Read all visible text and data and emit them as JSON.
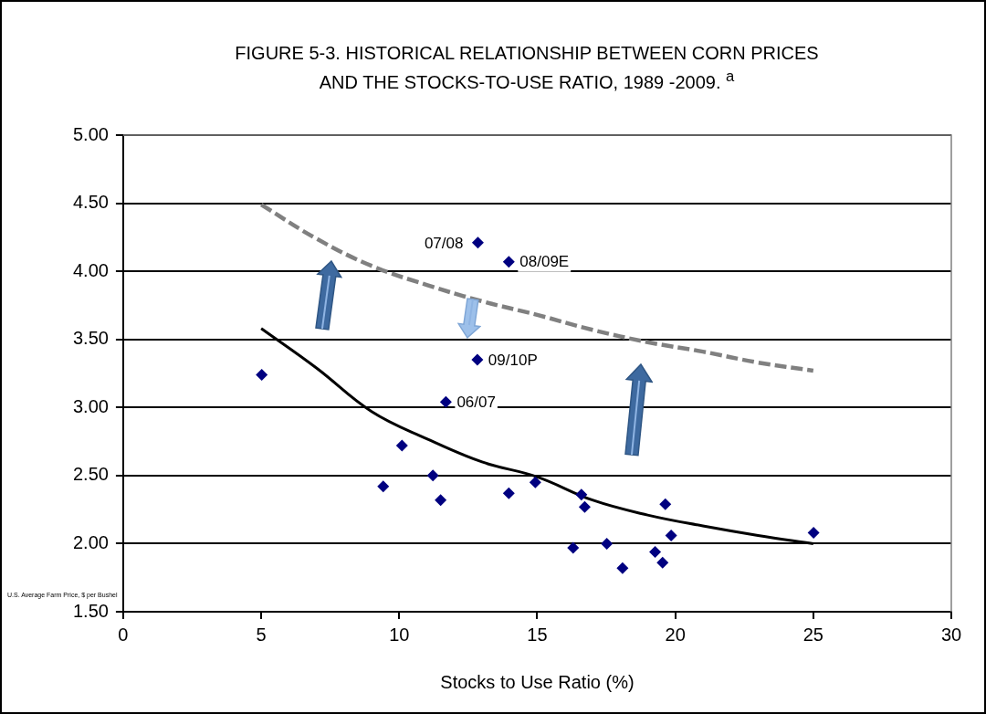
{
  "chart_data": {
    "type": "scatter",
    "title": "FIGURE 5-3. HISTORICAL RELATIONSHIP BETWEEN CORN PRICES AND THE STOCKS-TO-USE RATIO, 1989 -2009. $^{a}$",
    "xlabel": "Stocks to Use Ratio (%)",
    "ylabel": "U.S. Average Farm Price, $ per Bushel",
    "xlim": [
      0,
      30
    ],
    "xticks": [
      0,
      5,
      10,
      15,
      20,
      25,
      30
    ],
    "ylim": [
      1.5,
      5
    ],
    "yticks": [
      {
        "value": 1.5,
        "label": "1.50"
      },
      {
        "value": 2,
        "label": "2.00"
      },
      {
        "value": 2.5,
        "label": "2.50"
      },
      {
        "value": 3,
        "label": "3.00"
      },
      {
        "value": 3.5,
        "label": "3.50"
      },
      {
        "value": 4,
        "label": "4.00"
      },
      {
        "value": 4.5,
        "label": "4.50"
      },
      {
        "value": 5,
        "label": "5.00"
      }
    ],
    "grid": "y",
    "legend": false,
    "series": [
      {
        "type": "scatter",
        "color": "#000080",
        "marker": "diamond",
        "x": [
          5.02,
          9.42,
          10.1,
          11.22,
          11.5,
          12.85,
          13.97,
          12.83,
          11.69,
          13.97,
          14.93,
          16.6,
          16.72,
          19.64,
          16.3,
          17.52,
          18.09,
          19.27,
          19.54,
          19.85,
          25.01
        ],
        "values": [
          3.24,
          2.42,
          2.72,
          2.5,
          2.32,
          4.21,
          4.07,
          3.35,
          3.04,
          2.37,
          2.45,
          2.36,
          2.27,
          2.29,
          1.97,
          2.0,
          1.82,
          1.94,
          1.86,
          2.06,
          2.08
        ]
      },
      {
        "type": "line",
        "color": "#000000",
        "line_style": "solid",
        "marker": "none",
        "x": [
          5,
          7,
          9,
          11,
          13,
          15,
          17,
          19,
          21,
          23,
          25
        ],
        "values": [
          3.58,
          3.29,
          2.97,
          2.77,
          2.6,
          2.49,
          2.32,
          2.21,
          2.13,
          2.06,
          2.0
        ]
      },
      {
        "type": "line",
        "color": "#808080",
        "line_style": "dashed",
        "marker": "none",
        "x": [
          5,
          7,
          9,
          11,
          13,
          15,
          17,
          19,
          21,
          23,
          25
        ],
        "values": [
          4.49,
          4.24,
          4.04,
          3.9,
          3.78,
          3.68,
          3.57,
          3.48,
          3.41,
          3.33,
          3.27
        ]
      }
    ],
    "annotations": [
      {
        "text": "07/08",
        "x": 12.85,
        "y": 4.21
      },
      {
        "text": "08/09E",
        "x": 13.97,
        "y": 4.07
      },
      {
        "text": "09/10P",
        "x": 12.83,
        "y": 3.35
      },
      {
        "text": "06/07",
        "x": 11.69,
        "y": 3.04
      }
    ]
  }
}
